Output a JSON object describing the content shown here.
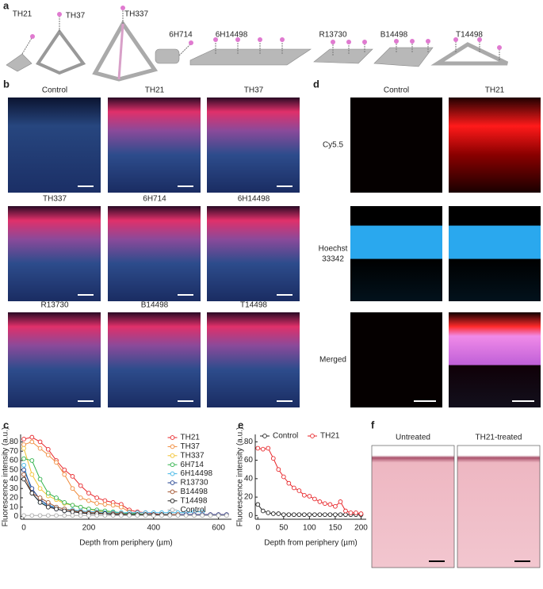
{
  "panel_labels": [
    "a",
    "b",
    "c",
    "d",
    "e",
    "f"
  ],
  "structures": [
    "TH21",
    "TH37",
    "TH337",
    "6H714",
    "6H14498",
    "R13730",
    "B14498",
    "T14498"
  ],
  "panel_b": {
    "titles": [
      "Control",
      "TH21",
      "TH37",
      "TH337",
      "6H714",
      "6H14498",
      "R13730",
      "B14498",
      "T14498"
    ]
  },
  "panel_d": {
    "columns": [
      "Control",
      "TH21"
    ],
    "rows": [
      "Cy5.5",
      [
        "Hoechst",
        "33342"
      ],
      "Merged"
    ]
  },
  "panel_f": {
    "titles": [
      "Untreated",
      "TH21-treated"
    ]
  },
  "chart_data": [
    {
      "type": "line",
      "xlabel": "Depth from periphery (µm)",
      "ylabel": "Fluorescence intensity (a.u.)",
      "x": [
        0,
        25,
        50,
        75,
        100,
        125,
        150,
        175,
        200,
        225,
        250,
        275,
        300,
        325,
        350,
        375,
        400,
        425,
        450,
        475,
        500,
        525,
        550,
        575,
        600,
        625
      ],
      "xlim": [
        -10,
        640
      ],
      "xticks": [
        0,
        200,
        400,
        600
      ],
      "ylim": [
        -3,
        88
      ],
      "yticks": [
        0,
        10,
        20,
        30,
        40,
        50,
        60,
        70,
        80
      ],
      "legend": "upper right",
      "series": [
        {
          "name": "TH21",
          "color": "#e8262a",
          "values": [
            83,
            85,
            80,
            72,
            60,
            50,
            43,
            33,
            25,
            20,
            17,
            15,
            13,
            7,
            5,
            4,
            3,
            2,
            2,
            2,
            2,
            2,
            2,
            2,
            2,
            2
          ]
        },
        {
          "name": "TH37",
          "color": "#f08a3a",
          "values": [
            77,
            80,
            73,
            66,
            58,
            45,
            30,
            20,
            17,
            14,
            13,
            12,
            10,
            5,
            3,
            2,
            2,
            2,
            2,
            2,
            null,
            null,
            null,
            null,
            null,
            null
          ]
        },
        {
          "name": "TH337",
          "color": "#f2c230",
          "values": [
            73,
            45,
            30,
            22,
            18,
            14,
            12,
            10,
            8,
            6,
            5,
            4,
            4,
            3,
            3,
            2,
            2,
            2,
            2,
            null,
            null,
            null,
            null,
            null,
            null,
            null
          ]
        },
        {
          "name": "6H714",
          "color": "#2fb24a",
          "values": [
            62,
            60,
            40,
            25,
            20,
            15,
            12,
            10,
            8,
            7,
            6,
            5,
            4,
            3,
            3,
            2,
            2,
            2,
            null,
            null,
            null,
            null,
            null,
            null,
            null,
            null
          ]
        },
        {
          "name": "6H14498",
          "color": "#3cb4e6",
          "values": [
            55,
            25,
            15,
            12,
            10,
            8,
            7,
            6,
            5,
            5,
            4,
            4,
            4,
            4,
            4,
            4,
            4,
            4,
            4,
            4,
            4,
            5,
            5,
            null,
            null,
            null
          ]
        },
        {
          "name": "R13730",
          "color": "#1f3f8f",
          "values": [
            50,
            30,
            18,
            12,
            8,
            6,
            5,
            4,
            3,
            3,
            3,
            2,
            2,
            2,
            2,
            2,
            2,
            2,
            2,
            2,
            2,
            2,
            2,
            2,
            2,
            2
          ]
        },
        {
          "name": "B14498",
          "color": "#a0522d",
          "values": [
            45,
            25,
            20,
            15,
            10,
            8,
            6,
            5,
            4,
            4,
            3,
            3,
            3,
            2,
            2,
            2,
            2,
            2,
            2,
            2,
            null,
            null,
            null,
            null,
            null,
            null
          ]
        },
        {
          "name": "T14498",
          "color": "#222222",
          "values": [
            40,
            25,
            15,
            10,
            8,
            6,
            5,
            4,
            3,
            3,
            3,
            2,
            2,
            2,
            2,
            2,
            2,
            2,
            2,
            null,
            null,
            null,
            null,
            null,
            null,
            null
          ]
        },
        {
          "name": "Control",
          "color": "#aaaaaa",
          "values": [
            1,
            1,
            1,
            1,
            1,
            1,
            1,
            1,
            1,
            1,
            1,
            1,
            1,
            1,
            1,
            1,
            1,
            1,
            1,
            1,
            1,
            1,
            1,
            1,
            1,
            1
          ]
        }
      ]
    },
    {
      "type": "line",
      "xlabel": "Depth from periphery (µm)",
      "ylabel": "Fluorescence intensity (a.u.)",
      "x": [
        0,
        10,
        20,
        30,
        40,
        50,
        60,
        70,
        80,
        90,
        100,
        110,
        120,
        130,
        140,
        150,
        160,
        170,
        180,
        190,
        200
      ],
      "xlim": [
        -5,
        210
      ],
      "xticks": [
        0,
        50,
        100,
        150,
        200
      ],
      "ylim": [
        -4,
        88
      ],
      "yticks": [
        0,
        20,
        40,
        60,
        80
      ],
      "legend": "upper center",
      "series": [
        {
          "name": "Control",
          "color": "#222222",
          "values": [
            12,
            5,
            3,
            2,
            2,
            1,
            1,
            1,
            1,
            1,
            1,
            1,
            1,
            1,
            1,
            1,
            1,
            1,
            1,
            1,
            1
          ]
        },
        {
          "name": "TH21",
          "color": "#e8262a",
          "values": [
            73,
            72,
            73,
            62,
            50,
            42,
            35,
            30,
            27,
            22,
            21,
            18,
            15,
            13,
            12,
            10,
            15,
            5,
            3,
            3,
            2
          ]
        }
      ]
    }
  ]
}
